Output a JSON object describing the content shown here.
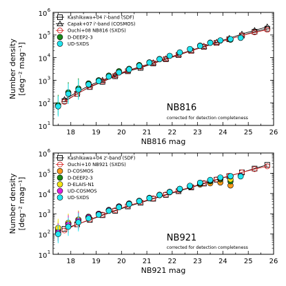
{
  "chart_data": [
    {
      "type": "scatter",
      "title": "",
      "annotation_main": "NB816",
      "annotation_sub": "corrected for detection completeness",
      "xlabel": "NB816 mag",
      "ylabel_line1": "Number density",
      "ylabel_line2": "[deg⁻² mag⁻¹]",
      "xlim": [
        17.3,
        26
      ],
      "ylim_log10": [
        1,
        6
      ],
      "yscale": "log",
      "xticks": [
        "18",
        "19",
        "20",
        "21",
        "22",
        "23",
        "24",
        "25",
        "26"
      ],
      "yticks": [
        "10",
        "10",
        "10",
        "10",
        "10",
        "10"
      ],
      "ytick_exponents": [
        "1",
        "2",
        "3",
        "4",
        "5",
        "6"
      ],
      "legend_position": "top-left",
      "series": [
        {
          "name": "Kashikawa+04 i'-band (SDF)",
          "marker": "open-square",
          "color": "#000000",
          "x": [
            17.75,
            18.25,
            18.75,
            19.25,
            19.75,
            20.25,
            20.75,
            21.25,
            21.75,
            22.25,
            22.75,
            23.25,
            23.75,
            24.25,
            24.75,
            25.25,
            25.75
          ],
          "y": [
            120,
            250,
            500,
            850,
            1500,
            2500,
            3500,
            5500,
            8500,
            13000,
            20000,
            30000,
            45000,
            65000,
            95000,
            140000,
            190000
          ]
        },
        {
          "name": "Capak+07 i'-band (COSMOS)",
          "marker": "open-triangle",
          "color": "#000000",
          "x": [
            17.75,
            18.25,
            18.75,
            19.25,
            19.75,
            20.25,
            20.75,
            21.25,
            21.75,
            22.25,
            22.75,
            23.25,
            23.75,
            24.25,
            24.75,
            25.25,
            25.75
          ],
          "y": [
            140,
            300,
            600,
            1000,
            1700,
            2700,
            4000,
            6000,
            9000,
            14000,
            21000,
            32000,
            48000,
            72000,
            110000,
            160000,
            230000
          ]
        },
        {
          "name": "Ouchi+08 NB816 (SXDS)",
          "marker": "open-circle",
          "color": "#d62728",
          "x": [
            17.75,
            18.25,
            18.75,
            19.25,
            19.75,
            20.25,
            20.75,
            21.25,
            21.75,
            22.25,
            22.75,
            23.25,
            23.75,
            24.25,
            24.75,
            25.25,
            25.75
          ],
          "y": [
            110,
            250,
            520,
            900,
            1600,
            2600,
            3800,
            5800,
            8800,
            13500,
            20000,
            31000,
            45000,
            65000,
            95000,
            130000,
            170000
          ]
        },
        {
          "name": "D-DEEP2-3",
          "marker": "filled-circle",
          "color": "#1a8a1a",
          "x": [
            17.5,
            17.9,
            18.3,
            18.7,
            19.1,
            19.5,
            19.9,
            20.3,
            20.7,
            21.1,
            21.5,
            21.9,
            22.3,
            22.7,
            23.1,
            23.5,
            23.9,
            24.3
          ],
          "y": [
            80,
            290,
            430,
            720,
            1000,
            1600,
            2500,
            3200,
            4700,
            6200,
            8700,
            12000,
            17000,
            24000,
            34000,
            46000,
            57000,
            62000
          ]
        },
        {
          "name": "UD-SXDS",
          "marker": "filled-circle",
          "color": "#22e5f0",
          "x": [
            17.5,
            17.9,
            18.3,
            18.7,
            19.1,
            19.5,
            19.9,
            20.3,
            20.7,
            21.1,
            21.5,
            21.9,
            22.3,
            22.7,
            23.1,
            23.5,
            23.9,
            24.3,
            24.7
          ],
          "y": [
            70,
            250,
            380,
            650,
            920,
            1450,
            2200,
            3000,
            4300,
            6000,
            8500,
            12000,
            17000,
            24000,
            33000,
            45000,
            58000,
            66000,
            75000
          ]
        }
      ]
    },
    {
      "type": "scatter",
      "title": "",
      "annotation_main": "NB921",
      "annotation_sub": "corrected for detection completeness",
      "xlabel": "NB921 mag",
      "ylabel_line1": "Number density",
      "ylabel_line2": "[deg⁻² mag⁻¹]",
      "xlim": [
        17.3,
        26
      ],
      "ylim_log10": [
        1,
        6
      ],
      "yscale": "log",
      "xticks": [
        "18",
        "19",
        "20",
        "21",
        "22",
        "23",
        "24",
        "25",
        "26"
      ],
      "yticks": [
        "10",
        "10",
        "10",
        "10",
        "10",
        "10"
      ],
      "ytick_exponents": [
        "1",
        "2",
        "3",
        "4",
        "5",
        "6"
      ],
      "legend_position": "top-left",
      "series": [
        {
          "name": "Kashikawa+04 z'-band (SDF)",
          "marker": "open-square",
          "color": "#000000",
          "x": [
            17.75,
            18.25,
            18.75,
            19.25,
            19.75,
            20.25,
            20.75,
            21.25,
            21.75,
            22.25,
            22.75,
            23.25,
            23.75,
            24.25,
            24.75,
            25.25,
            25.75
          ],
          "y": [
            180,
            300,
            500,
            850,
            1400,
            2300,
            3500,
            5500,
            8500,
            13000,
            20000,
            31000,
            48000,
            72000,
            110000,
            170000,
            260000
          ]
        },
        {
          "name": "Ouchi+10 NB921 (SXDS)",
          "marker": "open-circle",
          "color": "#d62728",
          "x": [
            17.75,
            18.25,
            18.75,
            19.25,
            19.75,
            20.25,
            20.75,
            21.25,
            21.75,
            22.25,
            22.75,
            23.25,
            23.75,
            24.25,
            24.75,
            25.25,
            25.75
          ],
          "y": [
            150,
            300,
            520,
            900,
            1500,
            2500,
            3800,
            5800,
            9000,
            14000,
            21000,
            33000,
            50000,
            75000,
            110000,
            160000,
            220000
          ]
        },
        {
          "name": "D-COSMOS",
          "marker": "filled-circle",
          "color": "#ff9a1a",
          "x": [
            17.5,
            17.9,
            18.3,
            18.7,
            19.1,
            19.5,
            19.9,
            20.3,
            20.7,
            21.1,
            21.5,
            21.9,
            22.3,
            22.7,
            23.1,
            23.5,
            23.9,
            24.3
          ],
          "y": [
            160,
            350,
            500,
            700,
            1000,
            1500,
            2300,
            3200,
            4300,
            6000,
            8500,
            12000,
            16000,
            22000,
            28000,
            32000,
            35000,
            25000
          ]
        },
        {
          "name": "D-DEEP2-3",
          "marker": "filled-circle",
          "color": "#1a8a1a",
          "x": [
            17.5,
            17.9,
            18.3,
            18.7,
            19.1,
            19.5,
            19.9,
            20.3,
            20.7,
            21.1,
            21.5,
            21.9,
            22.3,
            22.7,
            23.1,
            23.5,
            23.9,
            24.3
          ],
          "y": [
            130,
            320,
            470,
            680,
            980,
            1450,
            2200,
            3100,
            4200,
            5900,
            8300,
            11500,
            16500,
            23000,
            31000,
            40000,
            50000,
            40000
          ]
        },
        {
          "name": "D-ELAIS-N1",
          "marker": "filled-circle",
          "color": "#f5e616",
          "x": [
            17.5,
            17.9,
            18.3,
            18.7,
            19.1,
            19.5,
            19.9,
            20.3,
            20.7,
            21.1,
            21.5,
            21.9,
            22.3,
            22.7,
            23.1,
            23.5,
            23.9,
            24.3
          ],
          "y": [
            200,
            360,
            520,
            720,
            1000,
            1550,
            2300,
            3200,
            4400,
            6100,
            8600,
            12000,
            17000,
            24000,
            33000,
            44000,
            55000,
            50000
          ]
        },
        {
          "name": "UD-COSMOS",
          "marker": "filled-circle",
          "color": "#e020e0",
          "x": [
            17.5,
            17.9,
            18.3,
            18.7,
            19.1,
            19.5,
            19.9,
            20.3,
            20.7,
            21.1,
            21.5,
            21.9,
            22.3,
            22.7,
            23.1,
            23.5,
            23.9,
            24.3,
            24.7
          ],
          "y": [
            120,
            300,
            460,
            680,
            980,
            1500,
            2250,
            3150,
            4300,
            6000,
            8600,
            12000,
            17000,
            24000,
            34000,
            46000,
            60000,
            70000,
            75000
          ]
        },
        {
          "name": "UD-SXDS",
          "marker": "filled-circle",
          "color": "#22e5f0",
          "x": [
            17.5,
            17.9,
            18.3,
            18.7,
            19.1,
            19.5,
            19.9,
            20.3,
            20.7,
            21.1,
            21.5,
            21.9,
            22.3,
            22.7,
            23.1,
            23.5,
            23.9,
            24.3,
            24.7
          ],
          "y": [
            100,
            230,
            380,
            600,
            900,
            1400,
            2100,
            3000,
            4200,
            5900,
            8400,
            11800,
            17000,
            24000,
            34000,
            47000,
            62000,
            72000,
            70000
          ]
        }
      ]
    }
  ]
}
